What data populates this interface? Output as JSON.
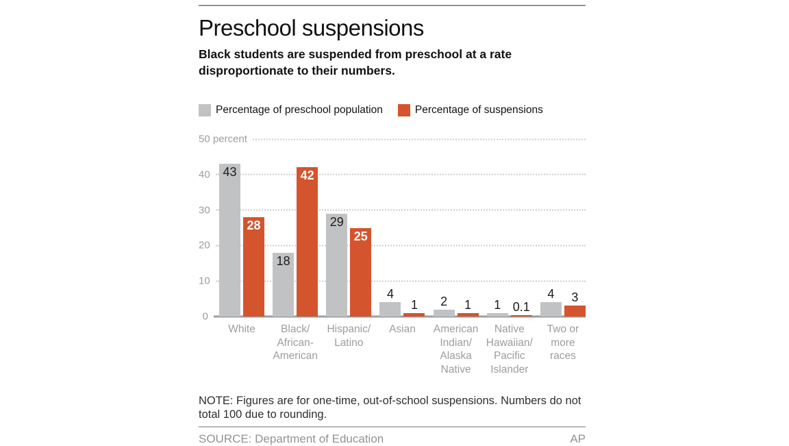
{
  "header": {
    "title": "Preschool suspensions",
    "subtitle": "Black students are suspended from preschool at a rate disproportionate to their numbers."
  },
  "chart_data": {
    "type": "bar",
    "title": "Preschool suspensions",
    "subtitle": "Black students are suspended from preschool at a rate disproportionate to their numbers.",
    "categories": [
      "White",
      "Black/\nAfrican-\nAmerican",
      "Hispanic/\nLatino",
      "Asian",
      "American\nIndian/\nAlaska\nNative",
      "Native\nHawaiian/\nPacific\nIslander",
      "Two or\nmore\nraces"
    ],
    "series": [
      {
        "name": "Percentage of preschool population",
        "color": "#c1c2c4",
        "values": [
          43,
          18,
          29,
          4,
          2,
          1,
          4
        ],
        "labels": [
          "43",
          "18",
          "29",
          "4",
          "2",
          "1",
          "4"
        ]
      },
      {
        "name": "Percentage of suspensions",
        "color": "#d4542e",
        "values": [
          28,
          42,
          25,
          1,
          1,
          0.1,
          3
        ],
        "labels": [
          "28",
          "42",
          "25",
          "1",
          "1",
          "0.1",
          "3"
        ]
      }
    ],
    "ylabel": "percent",
    "ylim": [
      0,
      50
    ],
    "y_ticks": [
      {
        "value": 50,
        "label": "50 percent"
      },
      {
        "value": 40,
        "label": "40"
      },
      {
        "value": 30,
        "label": "30"
      },
      {
        "value": 20,
        "label": "20"
      },
      {
        "value": 10,
        "label": "10"
      },
      {
        "value": 0,
        "label": "0"
      }
    ],
    "grid": "horizontal-dotted",
    "legend_position": "top",
    "inside_label_threshold": 10
  },
  "note": "NOTE: Figures are for one-time, out-of-school suspensions. Numbers do not total 100 due to rounding.",
  "source": "SOURCE: Department of Education",
  "credit": "AP",
  "colors": {
    "population_bar": "#c1c2c4",
    "suspensions_bar": "#d4542e",
    "axis_text": "#9a9c9e",
    "gridline": "#cbcbcb",
    "baseline": "#9b9da0",
    "background": "#ffffff"
  }
}
